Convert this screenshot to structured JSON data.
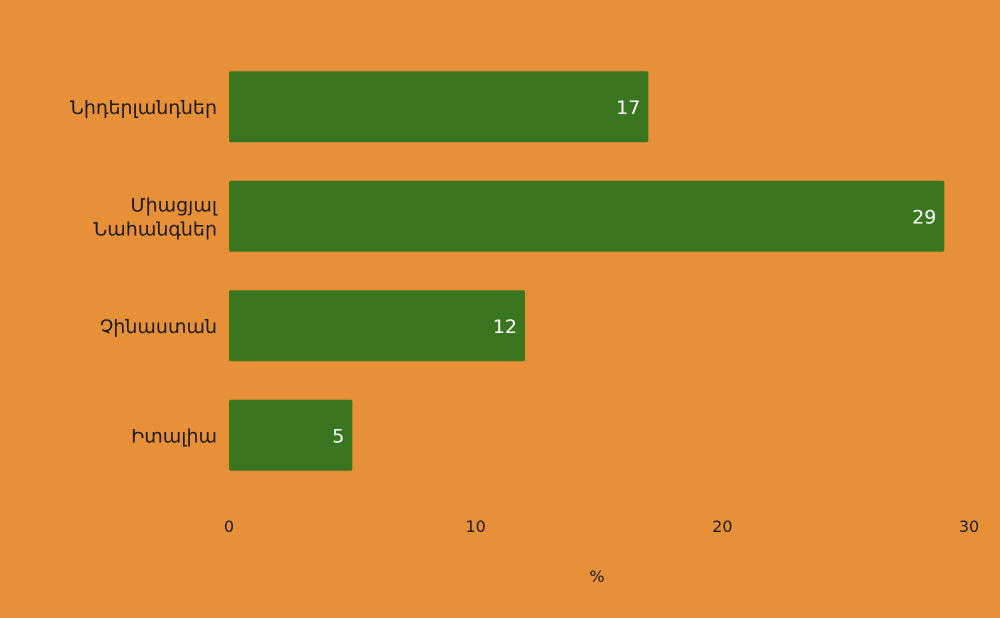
{
  "colors": {
    "background": "#E89038",
    "bar": "#3A7620",
    "value_label": "#ffffff",
    "text": "#1a1a1a"
  },
  "chart_data": {
    "type": "bar",
    "orientation": "horizontal",
    "categories": [
      [
        "Նիդերլանդներ"
      ],
      [
        "Միացյալ",
        "Նահանգներ"
      ],
      [
        "Չինաստան"
      ],
      [
        "Իտալիա"
      ]
    ],
    "values": [
      17,
      29,
      12,
      5
    ],
    "value_labels": [
      "17",
      "29",
      "12",
      "5"
    ],
    "xlim": [
      0,
      30
    ],
    "xticks": [
      0,
      10,
      20,
      30
    ],
    "xtick_labels": [
      "0",
      "10",
      "20",
      "30"
    ],
    "xlabel": "%",
    "ylabel": "",
    "title": "",
    "grid": false,
    "legend": false
  }
}
